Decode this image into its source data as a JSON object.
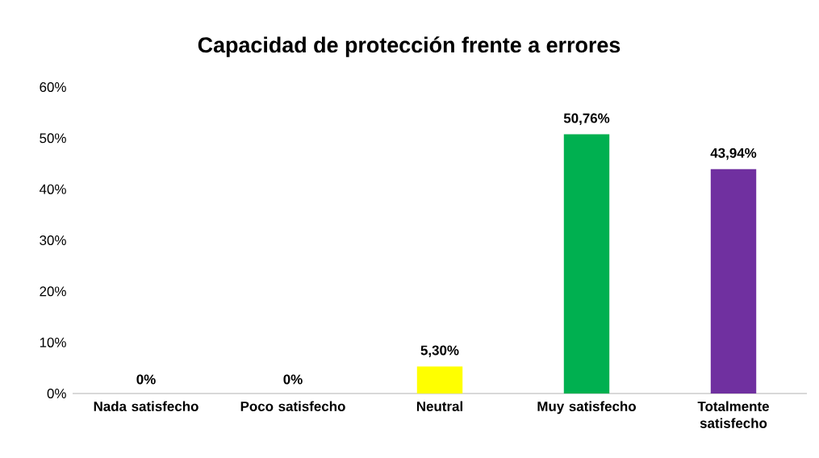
{
  "chart_data": {
    "type": "bar",
    "title": "Capacidad de protección frente a errores",
    "categories": [
      "Nada satisfecho",
      "Poco satisfecho",
      "Neutral",
      "Muy satisfecho",
      "Totalmente satisfecho"
    ],
    "values": [
      0,
      0,
      5.3,
      50.76,
      43.94
    ],
    "colors": [
      "#ffff00",
      "#ffff00",
      "#ffff00",
      "#00b050",
      "#7030a0"
    ],
    "value_labels": [
      "0%",
      "0%",
      "5,30%",
      "50,76%",
      "43,94%"
    ],
    "ylim": [
      0,
      60
    ],
    "yticks": [
      {
        "value": 0,
        "label": "0%"
      },
      {
        "value": 10,
        "label": "10%"
      },
      {
        "value": 20,
        "label": "20%"
      },
      {
        "value": 30,
        "label": "30%"
      },
      {
        "value": 40,
        "label": "40%"
      },
      {
        "value": 50,
        "label": "50%"
      },
      {
        "value": 60,
        "label": "60%"
      }
    ],
    "grid": false
  }
}
